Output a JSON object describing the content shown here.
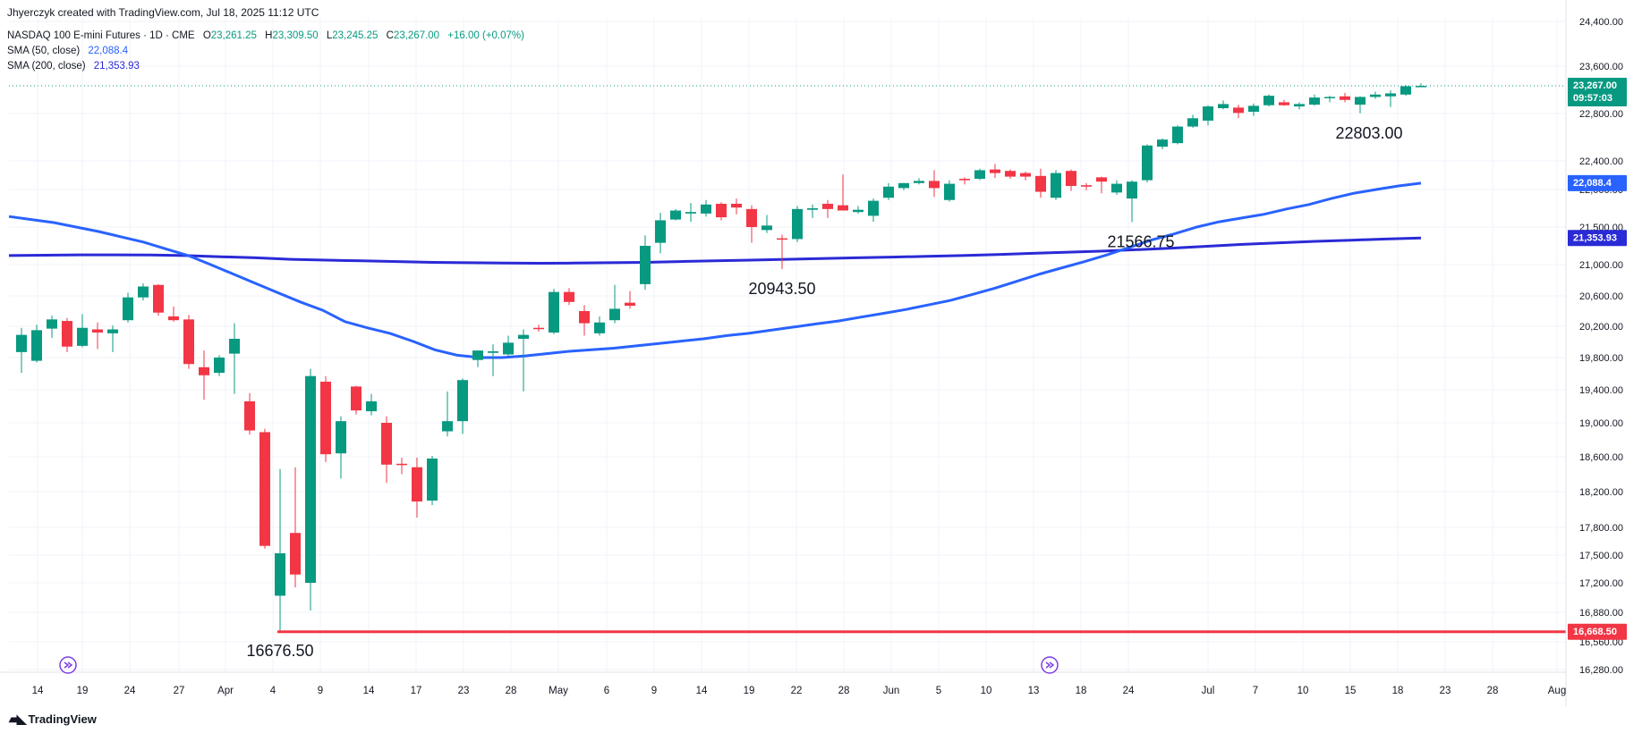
{
  "header": {
    "created_by": "Jhyerczyk created with TradingView.com, Jul 18, 2025 11:12 UTC",
    "symbol": "NASDAQ 100 E-mini Futures · 1D · CME",
    "o_label": "O",
    "o_value": "23,261.25",
    "h_label": "H",
    "h_value": "23,309.50",
    "l_label": "L",
    "l_value": "23,245.25",
    "c_label": "C",
    "c_value": "23,267.00",
    "change": "+16.00 (+0.07%)",
    "sma50_label": "SMA (50, close)",
    "sma50_value": "22,088.4",
    "sma200_label": "SMA (200, close)",
    "sma200_value": "21,353.93"
  },
  "footer": {
    "brand": "TradingView"
  },
  "colors": {
    "up": "#089981",
    "down": "#f23645",
    "sma50": "#2962ff",
    "sma200": "#2a2ad6",
    "support": "#f23645",
    "grid": "#f0f3fa"
  },
  "icons": [
    "replay-icon",
    "replay-icon",
    "tradingview-logo-icon"
  ],
  "chart_data": {
    "type": "candlestick",
    "y_axis_ticks": [
      24400,
      23600,
      22800,
      22400,
      22000,
      21500,
      21000,
      20600,
      20200,
      19800,
      19400,
      19000,
      18600,
      18200,
      17800,
      17500,
      17200,
      16880,
      16560,
      16280
    ],
    "y_tick_labels": [
      "24,400.00",
      "23,600.00",
      "22,800.00",
      "22,400.00",
      "22,000.00",
      "21,500.00",
      "21,000.00",
      "20,600.00",
      "20,200.00",
      "19,800.00",
      "19,400.00",
      "19,000.00",
      "18,600.00",
      "18,200.00",
      "17,800.00",
      "17,500.00",
      "17,200.00",
      "16,880.00",
      "16,560.00",
      "16,280.00"
    ],
    "x_tick_labels": [
      "14",
      "19",
      "24",
      "27",
      "Apr",
      "4",
      "9",
      "14",
      "17",
      "23",
      "28",
      "May",
      "6",
      "9",
      "14",
      "19",
      "22",
      "28",
      "Jun",
      "5",
      "10",
      "13",
      "18",
      "24",
      "Jul",
      "7",
      "10",
      "15",
      "18",
      "23",
      "28",
      "Aug"
    ],
    "candles": [
      {
        "o": 19870,
        "h": 20180,
        "l": 19610,
        "c": 20090
      },
      {
        "o": 19760,
        "h": 20220,
        "l": 19740,
        "c": 20150
      },
      {
        "o": 20170,
        "h": 20340,
        "l": 20050,
        "c": 20290
      },
      {
        "o": 20270,
        "h": 20310,
        "l": 19870,
        "c": 19940
      },
      {
        "o": 19950,
        "h": 20360,
        "l": 19930,
        "c": 20180
      },
      {
        "o": 20160,
        "h": 20250,
        "l": 19910,
        "c": 20120
      },
      {
        "o": 20110,
        "h": 20210,
        "l": 19870,
        "c": 20160
      },
      {
        "o": 20280,
        "h": 20640,
        "l": 20250,
        "c": 20580
      },
      {
        "o": 20580,
        "h": 20760,
        "l": 20540,
        "c": 20720
      },
      {
        "o": 20740,
        "h": 20750,
        "l": 20340,
        "c": 20380
      },
      {
        "o": 20330,
        "h": 20460,
        "l": 20260,
        "c": 20280
      },
      {
        "o": 20290,
        "h": 20350,
        "l": 19660,
        "c": 19720
      },
      {
        "o": 19680,
        "h": 19890,
        "l": 19280,
        "c": 19580
      },
      {
        "o": 19610,
        "h": 19830,
        "l": 19570,
        "c": 19800
      },
      {
        "o": 19850,
        "h": 20240,
        "l": 19350,
        "c": 20040
      },
      {
        "o": 19260,
        "h": 19360,
        "l": 18860,
        "c": 18910
      },
      {
        "o": 18890,
        "h": 18930,
        "l": 17570,
        "c": 17600
      },
      {
        "o": 17060,
        "h": 18460,
        "l": 16676.5,
        "c": 17520
      },
      {
        "o": 17740,
        "h": 18480,
        "l": 17150,
        "c": 17290
      },
      {
        "o": 17200,
        "h": 19660,
        "l": 16900,
        "c": 19570
      },
      {
        "o": 19500,
        "h": 19570,
        "l": 18540,
        "c": 18630
      },
      {
        "o": 18640,
        "h": 19080,
        "l": 18350,
        "c": 19020
      },
      {
        "o": 19440,
        "h": 19450,
        "l": 19100,
        "c": 19150
      },
      {
        "o": 19140,
        "h": 19350,
        "l": 19090,
        "c": 19260
      },
      {
        "o": 19000,
        "h": 19080,
        "l": 18300,
        "c": 18510
      },
      {
        "o": 18520,
        "h": 18590,
        "l": 18400,
        "c": 18510
      },
      {
        "o": 18480,
        "h": 18590,
        "l": 17910,
        "c": 18090
      },
      {
        "o": 18100,
        "h": 18610,
        "l": 18050,
        "c": 18580
      },
      {
        "o": 18900,
        "h": 19380,
        "l": 18840,
        "c": 19020
      },
      {
        "o": 19020,
        "h": 19540,
        "l": 18870,
        "c": 19520
      },
      {
        "o": 19770,
        "h": 19890,
        "l": 19680,
        "c": 19890
      },
      {
        "o": 19860,
        "h": 19970,
        "l": 19570,
        "c": 19880
      },
      {
        "o": 19840,
        "h": 20080,
        "l": 19820,
        "c": 19990
      },
      {
        "o": 20040,
        "h": 20160,
        "l": 19380,
        "c": 20090
      },
      {
        "o": 20180,
        "h": 20220,
        "l": 20130,
        "c": 20170
      },
      {
        "o": 20120,
        "h": 20690,
        "l": 20100,
        "c": 20650
      },
      {
        "o": 20650,
        "h": 20700,
        "l": 20480,
        "c": 20520
      },
      {
        "o": 20400,
        "h": 20480,
        "l": 20080,
        "c": 20240
      },
      {
        "o": 20110,
        "h": 20330,
        "l": 20080,
        "c": 20250
      },
      {
        "o": 20280,
        "h": 20740,
        "l": 20240,
        "c": 20430
      },
      {
        "o": 20510,
        "h": 20660,
        "l": 20430,
        "c": 20470
      },
      {
        "o": 20750,
        "h": 21390,
        "l": 20680,
        "c": 21250
      },
      {
        "o": 21290,
        "h": 21690,
        "l": 21150,
        "c": 21590
      },
      {
        "o": 21600,
        "h": 21740,
        "l": 21590,
        "c": 21720
      },
      {
        "o": 21680,
        "h": 21820,
        "l": 21570,
        "c": 21700
      },
      {
        "o": 21680,
        "h": 21860,
        "l": 21640,
        "c": 21800
      },
      {
        "o": 21810,
        "h": 21830,
        "l": 21590,
        "c": 21630
      },
      {
        "o": 21810,
        "h": 21880,
        "l": 21670,
        "c": 21760
      },
      {
        "o": 21740,
        "h": 21790,
        "l": 21290,
        "c": 21500
      },
      {
        "o": 21460,
        "h": 21660,
        "l": 21420,
        "c": 21520
      },
      {
        "o": 21350,
        "h": 21400,
        "l": 20943.5,
        "c": 21340
      },
      {
        "o": 21340,
        "h": 21780,
        "l": 21300,
        "c": 21740
      },
      {
        "o": 21730,
        "h": 21800,
        "l": 21620,
        "c": 21750
      },
      {
        "o": 21810,
        "h": 21860,
        "l": 21620,
        "c": 21740
      },
      {
        "o": 21790,
        "h": 22210,
        "l": 21720,
        "c": 21720
      },
      {
        "o": 21700,
        "h": 21780,
        "l": 21680,
        "c": 21730
      },
      {
        "o": 21650,
        "h": 21880,
        "l": 21570,
        "c": 21850
      },
      {
        "o": 21890,
        "h": 22090,
        "l": 21860,
        "c": 22040
      },
      {
        "o": 22020,
        "h": 22090,
        "l": 21990,
        "c": 22090
      },
      {
        "o": 22090,
        "h": 22160,
        "l": 22070,
        "c": 22120
      },
      {
        "o": 22120,
        "h": 22270,
        "l": 21900,
        "c": 22020
      },
      {
        "o": 21860,
        "h": 22130,
        "l": 21840,
        "c": 22080
      },
      {
        "o": 22150,
        "h": 22170,
        "l": 22070,
        "c": 22130
      },
      {
        "o": 22150,
        "h": 22290,
        "l": 22130,
        "c": 22270
      },
      {
        "o": 22280,
        "h": 22360,
        "l": 22160,
        "c": 22230
      },
      {
        "o": 22260,
        "h": 22280,
        "l": 22150,
        "c": 22180
      },
      {
        "o": 22230,
        "h": 22250,
        "l": 22130,
        "c": 22180
      },
      {
        "o": 22190,
        "h": 22290,
        "l": 21890,
        "c": 21970
      },
      {
        "o": 21890,
        "h": 22270,
        "l": 21860,
        "c": 22230
      },
      {
        "o": 22260,
        "h": 22280,
        "l": 21980,
        "c": 22050
      },
      {
        "o": 22060,
        "h": 22090,
        "l": 21990,
        "c": 22040
      },
      {
        "o": 22170,
        "h": 22180,
        "l": 21950,
        "c": 22110
      },
      {
        "o": 21960,
        "h": 22130,
        "l": 21930,
        "c": 22080
      },
      {
        "o": 21880,
        "h": 22130,
        "l": 21566.75,
        "c": 22110
      },
      {
        "o": 22130,
        "h": 22540,
        "l": 22100,
        "c": 22530
      },
      {
        "o": 22520,
        "h": 22590,
        "l": 22500,
        "c": 22580
      },
      {
        "o": 22550,
        "h": 22700,
        "l": 22540,
        "c": 22690
      },
      {
        "o": 22690,
        "h": 22790,
        "l": 22680,
        "c": 22760
      },
      {
        "o": 22740,
        "h": 22940,
        "l": 22700,
        "c": 22920
      },
      {
        "o": 22890,
        "h": 23020,
        "l": 22870,
        "c": 22960
      },
      {
        "o": 22900,
        "h": 22950,
        "l": 22760,
        "c": 22810
      },
      {
        "o": 22830,
        "h": 22970,
        "l": 22780,
        "c": 22930
      },
      {
        "o": 22940,
        "h": 23120,
        "l": 22920,
        "c": 23100
      },
      {
        "o": 22990,
        "h": 23030,
        "l": 22930,
        "c": 22940
      },
      {
        "o": 22920,
        "h": 22990,
        "l": 22870,
        "c": 22960
      },
      {
        "o": 22950,
        "h": 23120,
        "l": 22930,
        "c": 23070
      },
      {
        "o": 23070,
        "h": 23100,
        "l": 22990,
        "c": 23080
      },
      {
        "o": 23090,
        "h": 23150,
        "l": 22990,
        "c": 23030
      },
      {
        "o": 22950,
        "h": 23090,
        "l": 22803,
        "c": 23080
      },
      {
        "o": 23080,
        "h": 23170,
        "l": 23050,
        "c": 23120
      },
      {
        "o": 23090,
        "h": 23190,
        "l": 22910,
        "c": 23140
      },
      {
        "o": 23120,
        "h": 23280,
        "l": 23100,
        "c": 23261.25
      },
      {
        "o": 23261.25,
        "h": 23309.5,
        "l": 23245.25,
        "c": 23267
      }
    ],
    "sma50": [
      21640,
      21600,
      21560,
      21500,
      21440,
      21370,
      21300,
      21210,
      21120,
      21000,
      20880,
      20760,
      20640,
      20520,
      20410,
      20260,
      20180,
      20110,
      20010,
      19900,
      19830,
      19800,
      19800,
      19820,
      19850,
      19880,
      19900,
      19920,
      19950,
      19980,
      20010,
      20040,
      20080,
      20110,
      20150,
      20190,
      20230,
      20270,
      20320,
      20370,
      20420,
      20480,
      20540,
      20620,
      20700,
      20790,
      20880,
      20960,
      21040,
      21130,
      21230,
      21330,
      21410,
      21500,
      21570,
      21620,
      21670,
      21740,
      21800,
      21880,
      21950,
      22000,
      22050,
      22088.4
    ],
    "sma200": [
      21120,
      21125,
      21130,
      21130,
      21128,
      21120,
      21105,
      21090,
      21070,
      21060,
      21050,
      21040,
      21030,
      21025,
      21020,
      21018,
      21020,
      21025,
      21030,
      21040,
      21050,
      21060,
      21070,
      21080,
      21090,
      21100,
      21110,
      21120,
      21135,
      21150,
      21165,
      21180,
      21200,
      21220,
      21245,
      21270,
      21290,
      21310,
      21325,
      21340,
      21353.93
    ],
    "annotations": [
      {
        "label": "16676.50",
        "value": 16676.5
      },
      {
        "label": "20943.50",
        "value": 20943.5
      },
      {
        "label": "21566.75",
        "value": 21566.75
      },
      {
        "label": "22803.00",
        "value": 22803.0
      }
    ],
    "support_line": {
      "value": 16668.5,
      "label": "16,668.50"
    },
    "last_price": {
      "label": "23,267.00",
      "countdown": "09:57:03"
    },
    "sma50_tag": "22,088.4",
    "sma200_tag": "21,353.93"
  }
}
